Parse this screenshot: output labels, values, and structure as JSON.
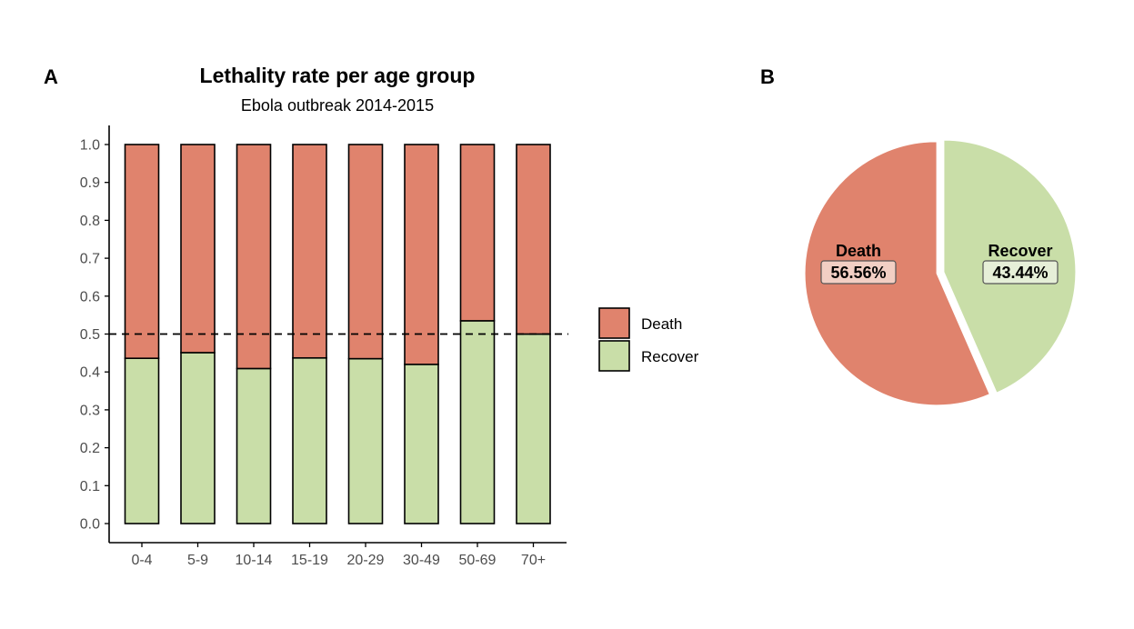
{
  "panels": {
    "a_label": "A",
    "b_label": "B"
  },
  "colors": {
    "death": "#E0836D",
    "recover": "#C9DEA8",
    "outline": "#000000",
    "axis": "#000000",
    "tick_text": "#4d4d4d"
  },
  "chart_data": [
    {
      "type": "bar",
      "stacked": true,
      "title": "Lethality rate per age group",
      "subtitle": "Ebola outbreak 2014-2015",
      "xlabel": "",
      "ylabel": "",
      "ylim": [
        0,
        1
      ],
      "yticks": [
        "0.0",
        "0.1",
        "0.2",
        "0.3",
        "0.4",
        "0.5",
        "0.6",
        "0.7",
        "0.8",
        "0.9",
        "1.0"
      ],
      "categories": [
        "0-4",
        "5-9",
        "10-14",
        "15-19",
        "20-29",
        "30-49",
        "50-69",
        "70+"
      ],
      "series": [
        {
          "name": "Death",
          "values": [
            0.564,
            0.549,
            0.591,
            0.563,
            0.565,
            0.58,
            0.465,
            0.5
          ]
        },
        {
          "name": "Recover",
          "values": [
            0.436,
            0.451,
            0.409,
            0.437,
            0.435,
            0.42,
            0.535,
            0.5
          ]
        }
      ],
      "reference_line": {
        "y": 0.5,
        "style": "dashed"
      },
      "legend": {
        "position": "right",
        "entries": [
          "Death",
          "Recover"
        ]
      },
      "grid": false
    },
    {
      "type": "pie",
      "slices": [
        {
          "name": "Death",
          "label": "56.56%",
          "value": 56.56
        },
        {
          "name": "Recover",
          "label": "43.44%",
          "value": 43.44
        }
      ],
      "exploded": true,
      "legend": "none"
    }
  ]
}
